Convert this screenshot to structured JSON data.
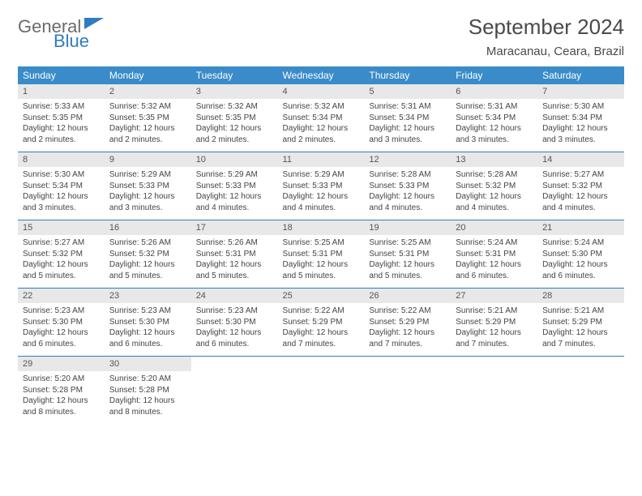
{
  "brand": {
    "general": "General",
    "blue": "Blue"
  },
  "title": "September 2024",
  "location": "Maracanau, Ceara, Brazil",
  "colors": {
    "header_bg": "#3a8bc9",
    "header_text": "#ffffff",
    "daynum_bg": "#e8e8e8",
    "daynum_text": "#555555",
    "body_text": "#444444",
    "sep_line": "#2f7dc0",
    "logo_gray": "#6b6b6b",
    "logo_blue": "#2f7dc0"
  },
  "headers": [
    "Sunday",
    "Monday",
    "Tuesday",
    "Wednesday",
    "Thursday",
    "Friday",
    "Saturday"
  ],
  "weeks": [
    [
      {
        "n": "1",
        "s": "Sunrise: 5:33 AM",
        "t": "Sunset: 5:35 PM",
        "d1": "Daylight: 12 hours",
        "d2": "and 2 minutes."
      },
      {
        "n": "2",
        "s": "Sunrise: 5:32 AM",
        "t": "Sunset: 5:35 PM",
        "d1": "Daylight: 12 hours",
        "d2": "and 2 minutes."
      },
      {
        "n": "3",
        "s": "Sunrise: 5:32 AM",
        "t": "Sunset: 5:35 PM",
        "d1": "Daylight: 12 hours",
        "d2": "and 2 minutes."
      },
      {
        "n": "4",
        "s": "Sunrise: 5:32 AM",
        "t": "Sunset: 5:34 PM",
        "d1": "Daylight: 12 hours",
        "d2": "and 2 minutes."
      },
      {
        "n": "5",
        "s": "Sunrise: 5:31 AM",
        "t": "Sunset: 5:34 PM",
        "d1": "Daylight: 12 hours",
        "d2": "and 3 minutes."
      },
      {
        "n": "6",
        "s": "Sunrise: 5:31 AM",
        "t": "Sunset: 5:34 PM",
        "d1": "Daylight: 12 hours",
        "d2": "and 3 minutes."
      },
      {
        "n": "7",
        "s": "Sunrise: 5:30 AM",
        "t": "Sunset: 5:34 PM",
        "d1": "Daylight: 12 hours",
        "d2": "and 3 minutes."
      }
    ],
    [
      {
        "n": "8",
        "s": "Sunrise: 5:30 AM",
        "t": "Sunset: 5:34 PM",
        "d1": "Daylight: 12 hours",
        "d2": "and 3 minutes."
      },
      {
        "n": "9",
        "s": "Sunrise: 5:29 AM",
        "t": "Sunset: 5:33 PM",
        "d1": "Daylight: 12 hours",
        "d2": "and 3 minutes."
      },
      {
        "n": "10",
        "s": "Sunrise: 5:29 AM",
        "t": "Sunset: 5:33 PM",
        "d1": "Daylight: 12 hours",
        "d2": "and 4 minutes."
      },
      {
        "n": "11",
        "s": "Sunrise: 5:29 AM",
        "t": "Sunset: 5:33 PM",
        "d1": "Daylight: 12 hours",
        "d2": "and 4 minutes."
      },
      {
        "n": "12",
        "s": "Sunrise: 5:28 AM",
        "t": "Sunset: 5:33 PM",
        "d1": "Daylight: 12 hours",
        "d2": "and 4 minutes."
      },
      {
        "n": "13",
        "s": "Sunrise: 5:28 AM",
        "t": "Sunset: 5:32 PM",
        "d1": "Daylight: 12 hours",
        "d2": "and 4 minutes."
      },
      {
        "n": "14",
        "s": "Sunrise: 5:27 AM",
        "t": "Sunset: 5:32 PM",
        "d1": "Daylight: 12 hours",
        "d2": "and 4 minutes."
      }
    ],
    [
      {
        "n": "15",
        "s": "Sunrise: 5:27 AM",
        "t": "Sunset: 5:32 PM",
        "d1": "Daylight: 12 hours",
        "d2": "and 5 minutes."
      },
      {
        "n": "16",
        "s": "Sunrise: 5:26 AM",
        "t": "Sunset: 5:32 PM",
        "d1": "Daylight: 12 hours",
        "d2": "and 5 minutes."
      },
      {
        "n": "17",
        "s": "Sunrise: 5:26 AM",
        "t": "Sunset: 5:31 PM",
        "d1": "Daylight: 12 hours",
        "d2": "and 5 minutes."
      },
      {
        "n": "18",
        "s": "Sunrise: 5:25 AM",
        "t": "Sunset: 5:31 PM",
        "d1": "Daylight: 12 hours",
        "d2": "and 5 minutes."
      },
      {
        "n": "19",
        "s": "Sunrise: 5:25 AM",
        "t": "Sunset: 5:31 PM",
        "d1": "Daylight: 12 hours",
        "d2": "and 5 minutes."
      },
      {
        "n": "20",
        "s": "Sunrise: 5:24 AM",
        "t": "Sunset: 5:31 PM",
        "d1": "Daylight: 12 hours",
        "d2": "and 6 minutes."
      },
      {
        "n": "21",
        "s": "Sunrise: 5:24 AM",
        "t": "Sunset: 5:30 PM",
        "d1": "Daylight: 12 hours",
        "d2": "and 6 minutes."
      }
    ],
    [
      {
        "n": "22",
        "s": "Sunrise: 5:23 AM",
        "t": "Sunset: 5:30 PM",
        "d1": "Daylight: 12 hours",
        "d2": "and 6 minutes."
      },
      {
        "n": "23",
        "s": "Sunrise: 5:23 AM",
        "t": "Sunset: 5:30 PM",
        "d1": "Daylight: 12 hours",
        "d2": "and 6 minutes."
      },
      {
        "n": "24",
        "s": "Sunrise: 5:23 AM",
        "t": "Sunset: 5:30 PM",
        "d1": "Daylight: 12 hours",
        "d2": "and 6 minutes."
      },
      {
        "n": "25",
        "s": "Sunrise: 5:22 AM",
        "t": "Sunset: 5:29 PM",
        "d1": "Daylight: 12 hours",
        "d2": "and 7 minutes."
      },
      {
        "n": "26",
        "s": "Sunrise: 5:22 AM",
        "t": "Sunset: 5:29 PM",
        "d1": "Daylight: 12 hours",
        "d2": "and 7 minutes."
      },
      {
        "n": "27",
        "s": "Sunrise: 5:21 AM",
        "t": "Sunset: 5:29 PM",
        "d1": "Daylight: 12 hours",
        "d2": "and 7 minutes."
      },
      {
        "n": "28",
        "s": "Sunrise: 5:21 AM",
        "t": "Sunset: 5:29 PM",
        "d1": "Daylight: 12 hours",
        "d2": "and 7 minutes."
      }
    ],
    [
      {
        "n": "29",
        "s": "Sunrise: 5:20 AM",
        "t": "Sunset: 5:28 PM",
        "d1": "Daylight: 12 hours",
        "d2": "and 8 minutes."
      },
      {
        "n": "30",
        "s": "Sunrise: 5:20 AM",
        "t": "Sunset: 5:28 PM",
        "d1": "Daylight: 12 hours",
        "d2": "and 8 minutes."
      },
      null,
      null,
      null,
      null,
      null
    ]
  ]
}
